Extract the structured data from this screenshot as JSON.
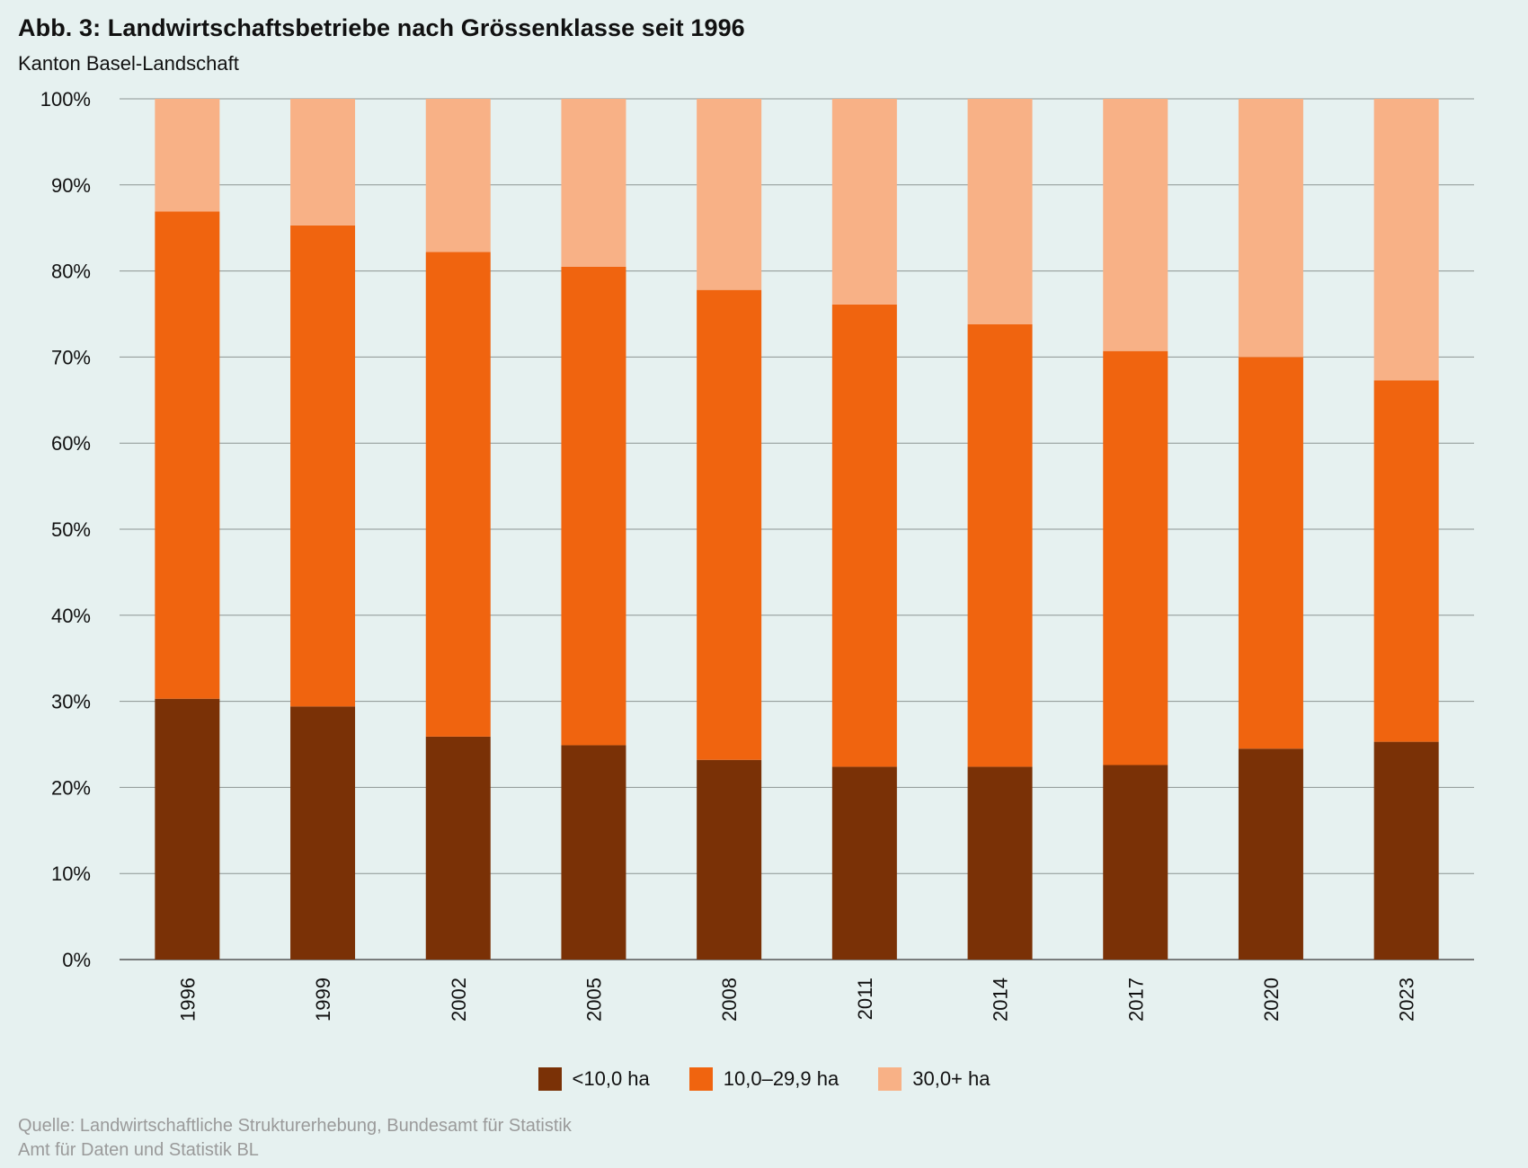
{
  "title": "Abb. 3: Landwirtschaftsbetriebe nach Grössenklasse seit 1996",
  "subtitle": "Kanton Basel-Landschaft",
  "source": {
    "line1": "Quelle: Landwirtschaftliche Strukturerhebung, Bundesamt für Statistik",
    "line2": "Amt für Daten und Statistik BL"
  },
  "chart_data": {
    "type": "bar",
    "stacked": true,
    "percent": true,
    "categories": [
      "1996",
      "1999",
      "2002",
      "2005",
      "2008",
      "2011",
      "2014",
      "2017",
      "2020",
      "2023"
    ],
    "series": [
      {
        "name": "<10,0 ha",
        "color": "#7a3106",
        "values": [
          30.3,
          29.4,
          25.9,
          24.9,
          23.2,
          22.4,
          22.4,
          22.6,
          24.5,
          25.3
        ]
      },
      {
        "name": "10,0–29,9 ha",
        "color": "#f0640f",
        "values": [
          56.6,
          55.9,
          56.3,
          55.6,
          54.6,
          53.7,
          51.4,
          48.1,
          45.5,
          42.0
        ]
      },
      {
        "name": "30,0+ ha",
        "color": "#f8b186",
        "values": [
          13.1,
          14.7,
          17.8,
          19.5,
          22.2,
          23.9,
          26.2,
          29.3,
          30.0,
          32.7
        ]
      }
    ],
    "yticks": [
      "0%",
      "10%",
      "20%",
      "30%",
      "40%",
      "50%",
      "60%",
      "70%",
      "80%",
      "90%",
      "100%"
    ],
    "ylim": [
      0,
      100
    ],
    "grid": true,
    "legend_position": "bottom"
  }
}
